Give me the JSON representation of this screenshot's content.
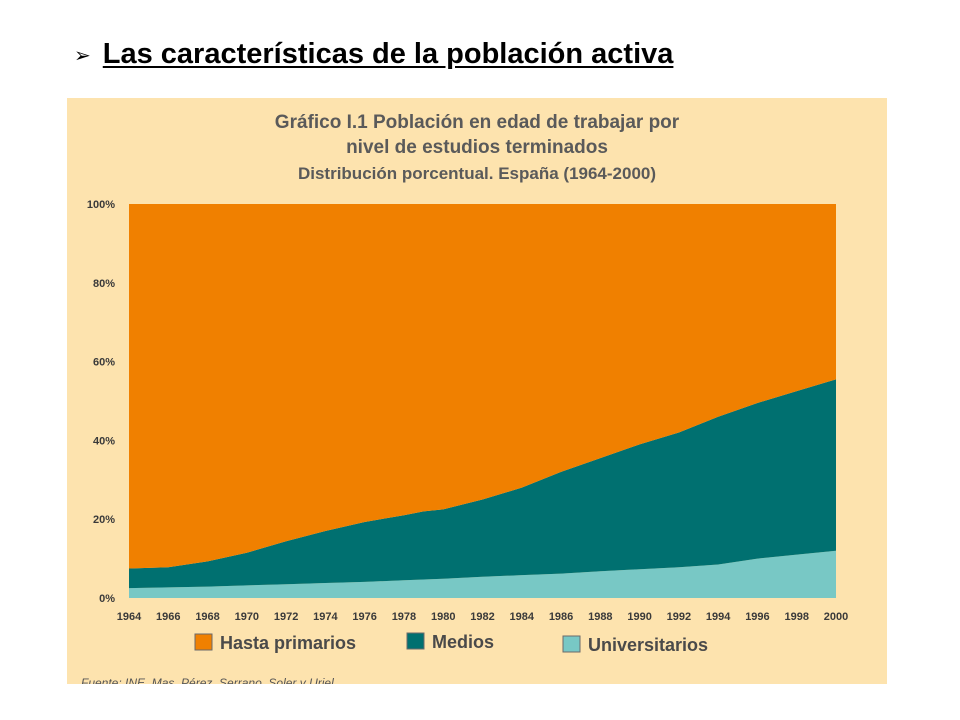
{
  "heading": {
    "bullet": "➢",
    "text": "Las características de la población activa"
  },
  "chart_data": {
    "type": "area",
    "title": "Gráfico I.1 Población en edad de trabajar por",
    "title_line2": "nivel de estudios terminados",
    "subtitle": "Distribución porcentual. España (1964-2000)",
    "stacked": true,
    "x": [
      1964,
      1966,
      1968,
      1970,
      1972,
      1974,
      1976,
      1978,
      1979,
      1980,
      1982,
      1984,
      1986,
      1988,
      1990,
      1992,
      1994,
      1996,
      1998,
      2000
    ],
    "x_tick_labels": [
      "1964",
      "1966",
      "1968",
      "1970",
      "1972",
      "1974",
      "1976",
      "1978",
      "1980",
      "1982",
      "1984",
      "1986",
      "1988",
      "1990",
      "1992",
      "1994",
      "1996",
      "1998",
      "2000"
    ],
    "y_tick_labels": [
      "0%",
      "20%",
      "40%",
      "60%",
      "80%",
      "100%"
    ],
    "ylim": [
      0,
      100
    ],
    "series": [
      {
        "name": "Universitarios",
        "color": "#78c8c5",
        "values": [
          2.5,
          2.7,
          2.9,
          3.2,
          3.5,
          3.8,
          4.1,
          4.5,
          4.7,
          4.9,
          5.4,
          5.8,
          6.2,
          6.8,
          7.3,
          7.8,
          8.5,
          10.0,
          11.0,
          12.0
        ]
      },
      {
        "name": "Medios",
        "color": "#007070",
        "values": [
          5.0,
          5.1,
          6.4,
          8.3,
          10.9,
          13.2,
          15.2,
          16.5,
          17.3,
          17.6,
          19.6,
          22.2,
          25.8,
          28.7,
          31.7,
          34.2,
          37.5,
          39.5,
          41.5,
          43.5
        ]
      },
      {
        "name": "Hasta primarios",
        "color": "#f08000",
        "values": [
          92.5,
          92.2,
          90.7,
          88.5,
          85.6,
          83.0,
          80.7,
          79.0,
          78.0,
          77.5,
          75.0,
          72.0,
          68.0,
          64.5,
          61.0,
          58.0,
          54.0,
          50.5,
          47.5,
          44.5
        ]
      }
    ],
    "legend_order": [
      "Hasta primarios",
      "Medios",
      "Universitarios"
    ],
    "legend_position": "bottom",
    "grid": false,
    "source": "Fuente: INE, Mas, Pérez, Serrano, Soler y Uriel"
  }
}
